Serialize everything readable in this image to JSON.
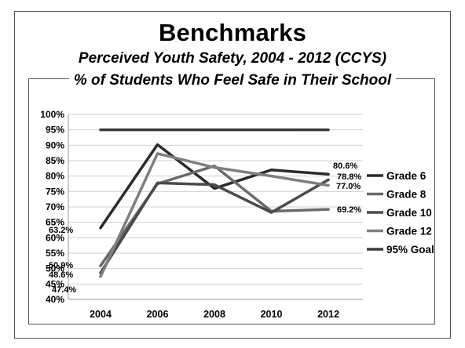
{
  "slide": {
    "title": "Benchmarks",
    "subtitle": "Perceived Youth Safety, 2004 - 2012 (CCYS)"
  },
  "chart_data": {
    "type": "line",
    "title": "% of Students Who Feel Safe in Their School",
    "x": [
      "2004",
      "2006",
      "2008",
      "2010",
      "2012"
    ],
    "ylim": [
      40,
      100
    ],
    "yticks": [
      "40%",
      "45%",
      "50%",
      "55%",
      "60%",
      "65%",
      "70%",
      "75%",
      "80%",
      "85%",
      "90%",
      "95%",
      "100%"
    ],
    "grid": true,
    "legend": "right",
    "series": [
      {
        "name": "Grade 6",
        "color": "#2b2b2b",
        "values": [
          63.2,
          90.2,
          76.0,
          82.0,
          80.6
        ],
        "labels": [
          "63.2%",
          "",
          "",
          "",
          "80.6%"
        ]
      },
      {
        "name": "Grade 8",
        "color": "#6a6a6a",
        "values": [
          50.9,
          77.5,
          83.3,
          68.6,
          69.2
        ],
        "labels": [
          "50.9%",
          "",
          "",
          "",
          "69.2%"
        ]
      },
      {
        "name": "Grade 10",
        "color": "#4a4a4a",
        "values": [
          48.6,
          77.8,
          77.2,
          68.2,
          78.8
        ],
        "labels": [
          "48.6%",
          "",
          "",
          "",
          "78.8%"
        ]
      },
      {
        "name": "Grade 12",
        "color": "#7f7f7f",
        "values": [
          47.4,
          87.3,
          82.8,
          80.0,
          77.0
        ],
        "labels": [
          "47.4%",
          "",
          "",
          "",
          "77.0%"
        ]
      },
      {
        "name": "95% Goal",
        "color": "#3a3a3a",
        "values": [
          95,
          95,
          95,
          95,
          95
        ],
        "labels": [
          "",
          "",
          "",
          "",
          ""
        ]
      }
    ]
  }
}
